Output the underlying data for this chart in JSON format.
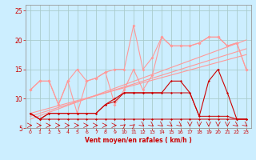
{
  "x": [
    0,
    1,
    2,
    3,
    4,
    5,
    6,
    7,
    8,
    9,
    10,
    11,
    12,
    13,
    14,
    15,
    16,
    17,
    18,
    19,
    20,
    21,
    22,
    23
  ],
  "line_dark1": [
    7.5,
    6.5,
    6.5,
    6.5,
    6.5,
    6.5,
    6.5,
    6.5,
    6.5,
    6.5,
    6.5,
    6.5,
    6.5,
    6.5,
    6.5,
    6.5,
    6.5,
    6.5,
    6.5,
    6.5,
    6.5,
    6.5,
    6.5,
    6.5
  ],
  "line_dark2": [
    7.5,
    6.5,
    7.5,
    7.5,
    7.5,
    7.5,
    7.5,
    7.5,
    9.0,
    9.5,
    11.0,
    11.0,
    11.0,
    11.0,
    11.0,
    11.0,
    11.0,
    11.0,
    7.0,
    7.0,
    7.0,
    7.0,
    6.5,
    6.5
  ],
  "line_dark3": [
    7.5,
    6.5,
    7.5,
    7.5,
    7.5,
    7.5,
    7.5,
    7.5,
    9.0,
    10.0,
    11.0,
    11.0,
    11.0,
    11.0,
    11.0,
    13.0,
    13.0,
    11.0,
    7.0,
    13.0,
    15.0,
    11.0,
    6.5,
    6.5
  ],
  "line_light1": [
    11.5,
    13.0,
    13.0,
    9.0,
    13.0,
    7.5,
    13.0,
    13.5,
    14.5,
    9.0,
    11.5,
    15.0,
    11.5,
    14.0,
    20.5,
    19.0,
    19.0,
    19.0,
    19.5,
    20.5,
    20.5,
    19.0,
    19.5,
    15.0
  ],
  "line_light2": [
    11.5,
    13.0,
    13.0,
    9.0,
    13.0,
    15.0,
    13.0,
    13.5,
    14.5,
    15.0,
    15.0,
    22.5,
    15.0,
    17.0,
    20.5,
    19.0,
    19.0,
    19.0,
    19.5,
    20.5,
    20.5,
    19.0,
    19.5,
    15.0
  ],
  "trend_lines": [
    [
      7.5,
      17.5
    ],
    [
      7.0,
      18.5
    ],
    [
      6.5,
      20.0
    ]
  ],
  "background_color": "#cceeff",
  "grid_color": "#aacccc",
  "line_dark_color": "#cc0000",
  "line_light_color": "#ff9999",
  "xlabel": "Vent moyen/en rafales ( km/h )",
  "ylim": [
    5,
    26
  ],
  "xlim": [
    -0.5,
    23.5
  ],
  "yticks": [
    5,
    10,
    15,
    20,
    25
  ],
  "xticks": [
    0,
    1,
    2,
    3,
    4,
    5,
    6,
    7,
    8,
    9,
    10,
    11,
    12,
    13,
    14,
    15,
    16,
    17,
    18,
    19,
    20,
    21,
    22,
    23
  ],
  "figsize": [
    3.2,
    2.0
  ],
  "dpi": 100
}
